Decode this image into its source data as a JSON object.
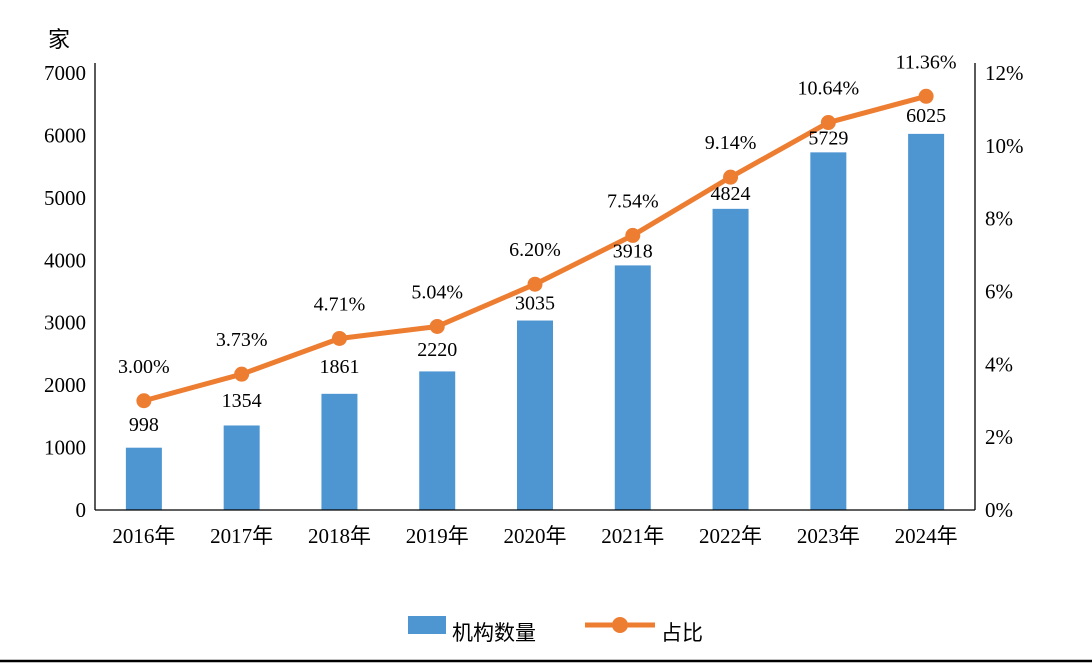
{
  "chart_data": {
    "type": "combo",
    "categories": [
      "2016年",
      "2017年",
      "2018年",
      "2019年",
      "2020年",
      "2021年",
      "2022年",
      "2023年",
      "2024年"
    ],
    "series": [
      {
        "name": "机构数量",
        "type": "bar",
        "axis": "left",
        "color": "#4E96D2",
        "values": [
          998,
          1354,
          1861,
          2220,
          3035,
          3918,
          4824,
          5729,
          6025
        ],
        "labels": [
          "998",
          "1354",
          "1861",
          "2220",
          "3035",
          "3918",
          "4824",
          "5729",
          "6025"
        ]
      },
      {
        "name": "占比",
        "type": "line",
        "axis": "right",
        "color": "#ED7D31",
        "values": [
          3.0,
          3.73,
          4.71,
          5.04,
          6.2,
          7.54,
          9.14,
          10.64,
          11.36
        ],
        "labels": [
          "3.00%",
          "3.73%",
          "4.71%",
          "5.04%",
          "6.20%",
          "7.54%",
          "9.14%",
          "10.64%",
          "11.36%"
        ]
      }
    ],
    "left_axis": {
      "unit": "家",
      "min": 0,
      "max": 7000,
      "step": 1000,
      "ticks": [
        "0",
        "1000",
        "2000",
        "3000",
        "4000",
        "5000",
        "6000",
        "7000"
      ]
    },
    "right_axis": {
      "min": 0,
      "max": 12,
      "step": 2,
      "ticks": [
        "0%",
        "2%",
        "4%",
        "6%",
        "8%",
        "10%",
        "12%"
      ]
    },
    "legend": [
      "机构数量",
      "占比"
    ],
    "legend_position": "bottom",
    "grid": false,
    "title": "",
    "xlabel": "",
    "ylabel_left": "家",
    "ylabel_right": ""
  },
  "colors": {
    "bar": "#4E96D2",
    "line": "#ED7D31",
    "axis": "#000000",
    "text": "#000000",
    "bottom_rule": "#000000"
  }
}
